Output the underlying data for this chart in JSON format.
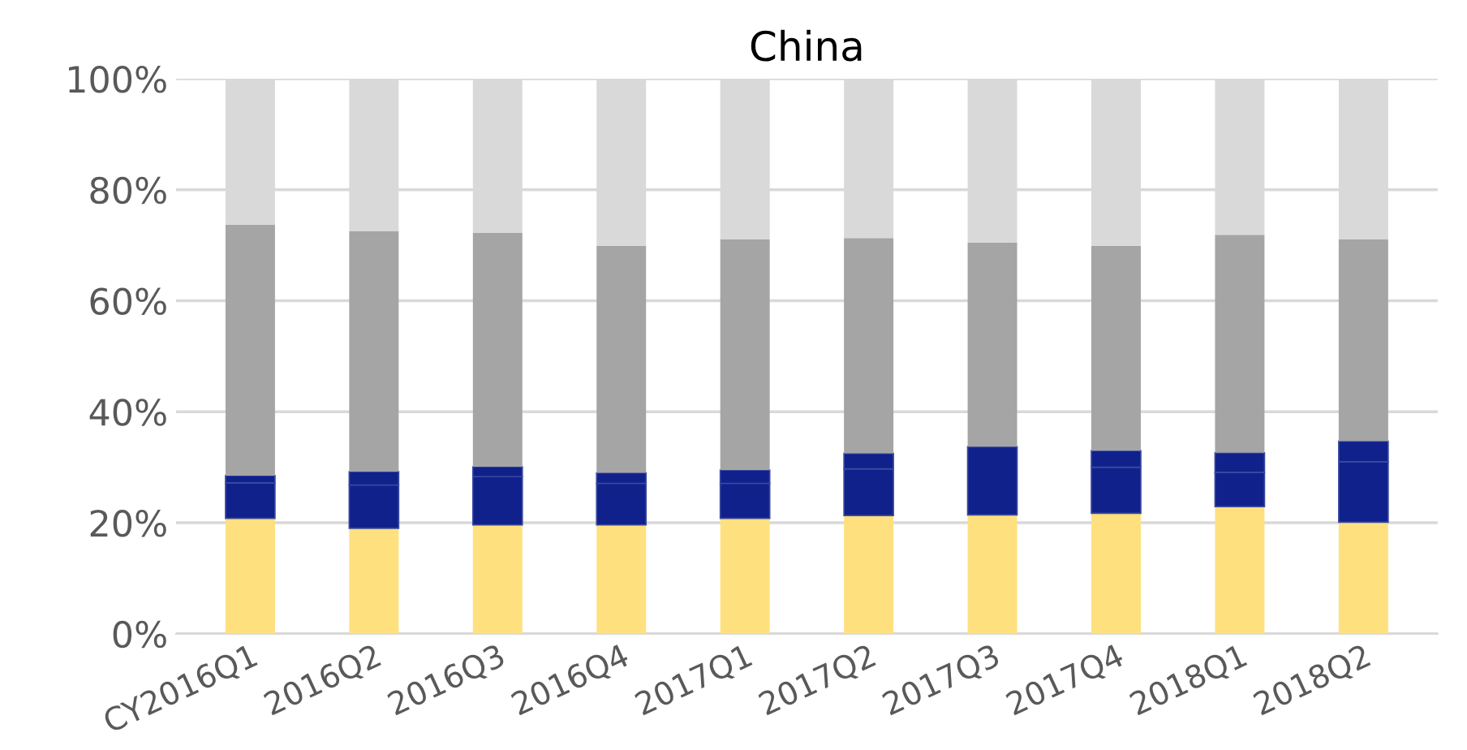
{
  "chart_data": {
    "type": "bar",
    "title": "China",
    "stacked": true,
    "categories": [
      "CY2016Q1",
      "2016Q2",
      "2016Q3",
      "2016Q4",
      "2017Q1",
      "2017Q2",
      "2017Q3",
      "2017Q4",
      "2018Q1",
      "2018Q2"
    ],
    "series": [
      {
        "color": "#ffe07f",
        "values": [
          20.8,
          19.0,
          19.6,
          19.6,
          20.8,
          21.3,
          21.4,
          21.7,
          22.9,
          20.1
        ]
      },
      {
        "color": "#10218b",
        "values": [
          6.4,
          7.8,
          8.7,
          7.5,
          6.3,
          8.4,
          12.3,
          8.3,
          6.2,
          10.9
        ]
      },
      {
        "color": "#10218b",
        "values": [
          1.3,
          2.4,
          1.8,
          1.9,
          2.4,
          2.8,
          0,
          3.0,
          3.5,
          3.7
        ]
      },
      {
        "color": "#a5a5a5",
        "values": [
          45.2,
          43.3,
          42.1,
          40.9,
          41.6,
          38.8,
          36.8,
          36.9,
          39.3,
          36.4
        ]
      },
      {
        "color": "#d9d9d9",
        "values": [
          26.3,
          27.5,
          27.8,
          30.1,
          28.9,
          28.7,
          29.5,
          30.1,
          28.1,
          28.9
        ]
      }
    ],
    "ylim": [
      0,
      100
    ],
    "yticks": [
      {
        "value": 0,
        "label": "0%"
      },
      {
        "value": 20,
        "label": "20%"
      },
      {
        "value": 40,
        "label": "40%"
      },
      {
        "value": 60,
        "label": "60%"
      },
      {
        "value": 80,
        "label": "80%"
      },
      {
        "value": 100,
        "label": "100%"
      }
    ],
    "grid": "y"
  }
}
